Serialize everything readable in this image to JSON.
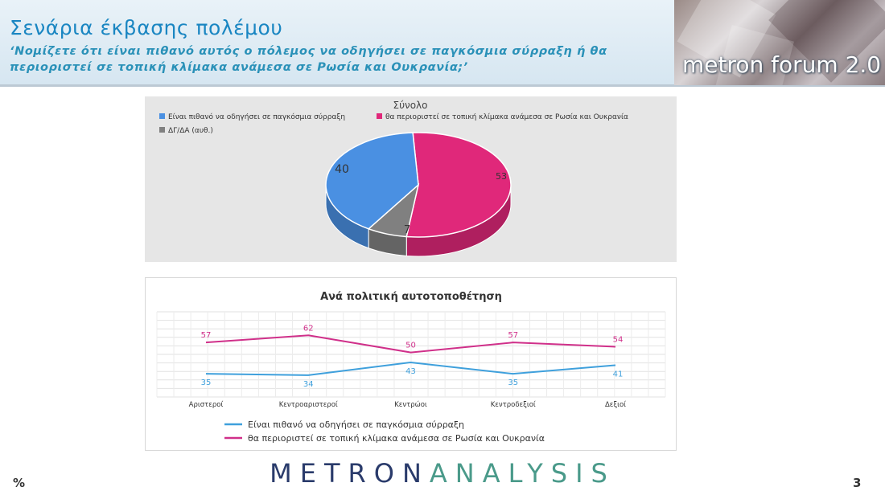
{
  "header": {
    "title": "Σενάρια έκβασης πολέμου",
    "question": "‘Νομίζετε ότι είναι πιθανό αυτός ο πόλεμος να οδηγήσει σε παγκόσμια σύρραξη ή θα περιοριστεί σε τοπική κλίμακα ανάμεσα σε Ρωσία και Ουκρανία;’",
    "logo_text": "metron forum 2.0"
  },
  "footer": {
    "brand_left": "METRON",
    "brand_right": "ANALYSIS",
    "unit": "%",
    "page_number": "3"
  },
  "chart_data": [
    {
      "type": "pie",
      "title": "Σύνολο",
      "legend_position": "top",
      "slices": [
        {
          "label": "Είναι πιθανό να οδηγήσει σε παγκόσμια σύρραξη",
          "value": 40,
          "color": "#4a90e2"
        },
        {
          "label": "θα περιοριστεί σε τοπική κλίμακα ανάμεσα σε Ρωσία και Ουκρανία",
          "value": 53,
          "color": "#e0287a"
        },
        {
          "label": "ΔΓ/ΔΑ (αυθ.)",
          "value": 7,
          "color": "#808080"
        }
      ]
    },
    {
      "type": "line",
      "title": "Ανά πολιτική αυτοτοποθέτηση",
      "legend_position": "bottom",
      "grid": true,
      "categories": [
        "Αριστεροί",
        "Κεντροαριστεροί",
        "Κεντρώοι",
        "Κεντροδεξιοί",
        "Δεξιοί"
      ],
      "ylim": [
        0,
        100
      ],
      "series": [
        {
          "name": "Είναι πιθανό να οδηγήσει σε παγκόσμια σύρραξη",
          "values": [
            35,
            34,
            43,
            35,
            41
          ],
          "color": "#3fa0dc"
        },
        {
          "name": "θα περιοριστεί σε τοπική κλίμακα ανάμεσα σε Ρωσία και Ουκρανία",
          "values": [
            57,
            62,
            50,
            57,
            54
          ],
          "color": "#d0308a"
        }
      ]
    }
  ]
}
